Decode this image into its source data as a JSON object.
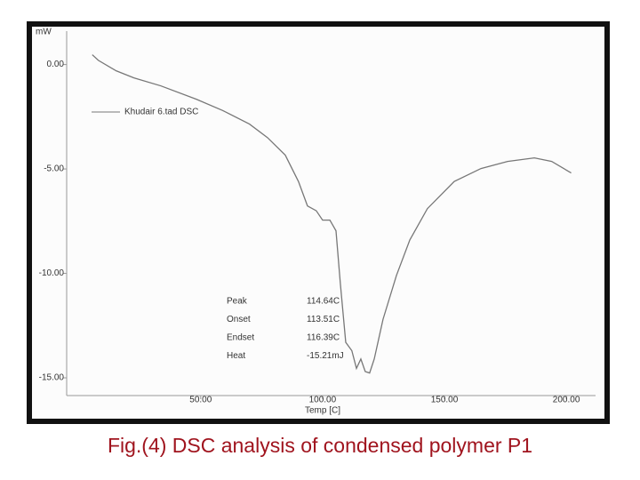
{
  "chart_data": {
    "type": "line",
    "title": "Fig.(4) DSC analysis of  condensed polymer P1",
    "y_label": "mW",
    "x_label": "Temp [C]",
    "xlim": [
      -5,
      212
    ],
    "ylim": [
      -15.85,
      1.6
    ],
    "xticks": [
      {
        "value": 50,
        "label": "50.00"
      },
      {
        "value": 100,
        "label": "100.00"
      },
      {
        "value": 150,
        "label": "150.00"
      },
      {
        "value": 200,
        "label": "200.00"
      }
    ],
    "yticks": [
      {
        "value": 0,
        "label": "0.00"
      },
      {
        "value": -5,
        "label": "-5.00"
      },
      {
        "value": -10,
        "label": "-10.00"
      },
      {
        "value": -15,
        "label": "-15.00"
      }
    ],
    "series": [
      {
        "name": "Khudair 6.tad  DSC",
        "color": "#777777",
        "x": [
          5.5,
          8,
          15.3,
          22.6,
          33.6,
          48.2,
          59,
          70,
          77.4,
          84.7,
          90.1,
          93.8,
          97.4,
          100,
          103,
          105.5,
          107.3,
          109.5,
          112,
          113.9,
          115.7,
          117.5,
          119.3,
          121.2,
          124.8,
          130.3,
          135.8,
          143,
          154,
          165,
          175.9,
          186.9,
          194,
          202
        ],
        "values": [
          0.47,
          0.2,
          -0.3,
          -0.64,
          -1.02,
          -1.66,
          -2.2,
          -2.85,
          -3.5,
          -4.34,
          -5.6,
          -6.77,
          -7.0,
          -7.45,
          -7.45,
          -7.96,
          -10.5,
          -13.3,
          -13.7,
          -14.55,
          -14.1,
          -14.7,
          -14.77,
          -14.1,
          -12.2,
          -10.1,
          -8.4,
          -6.9,
          -5.6,
          -4.98,
          -4.64,
          -4.47,
          -4.64,
          -5.19
        ]
      }
    ],
    "annotations": [
      {
        "label": "Peak",
        "value": "114.64C"
      },
      {
        "label": "Onset",
        "value": "113.51C"
      },
      {
        "label": "Endset",
        "value": "116.39C"
      },
      {
        "label": "Heat",
        "value": "-15.21mJ"
      }
    ]
  }
}
